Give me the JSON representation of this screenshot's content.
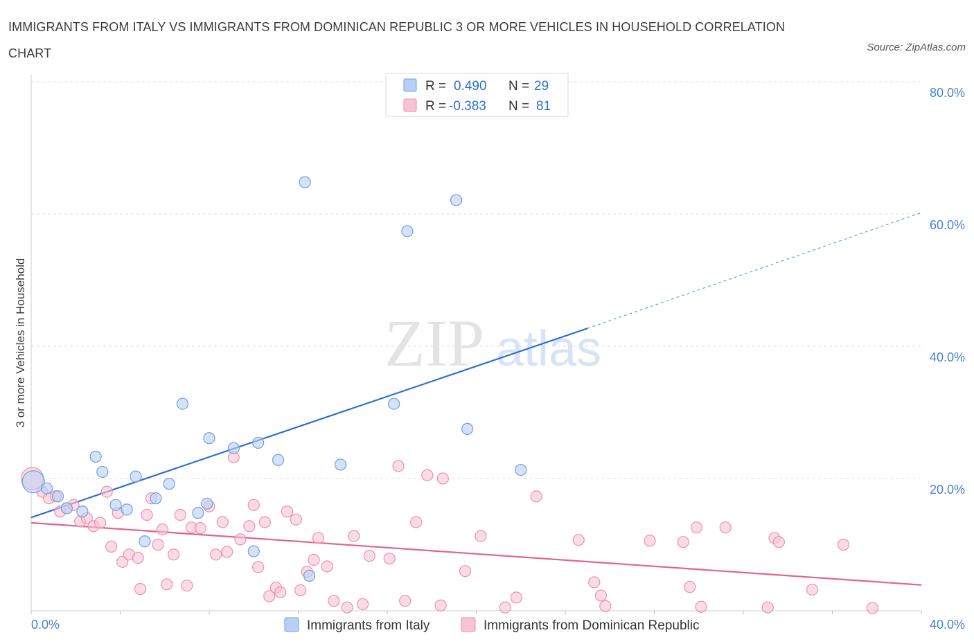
{
  "title": "IMMIGRANTS FROM ITALY VS IMMIGRANTS FROM DOMINICAN REPUBLIC 3 OR MORE VEHICLES IN HOUSEHOLD CORRELATION CHART",
  "source": "Source: ZipAtlas.com",
  "watermark": {
    "zip": "ZIP",
    "atlas": "atlas"
  },
  "colors": {
    "italy_fill": "#b8d0f5",
    "italy_stroke": "#6f9fe0",
    "italy_line": "#2e6fd0",
    "dr_fill": "#f8c4d4",
    "dr_stroke": "#ec8fae",
    "dr_line": "#e2628f",
    "label_blue": "#4a7fd0",
    "grid": "#dcdcdc"
  },
  "stats": {
    "italy": {
      "r_label": "R =",
      "r_value": "0.490",
      "n_label": "N =",
      "n_value": "29"
    },
    "dr": {
      "r_label": "R =",
      "r_value": "-0.383",
      "n_label": "N =",
      "n_value": "81"
    }
  },
  "legend": {
    "italy": "Immigrants from Italy",
    "dr": "Immigrants from Dominican Republic"
  },
  "chart_data": {
    "type": "scatter",
    "title": "IMMIGRANTS FROM ITALY VS IMMIGRANTS FROM DOMINICAN REPUBLIC 3 OR MORE VEHICLES IN HOUSEHOLD CORRELATION CHART",
    "xlabel": "",
    "ylabel": "3 or more Vehicles in Household",
    "xlim": [
      0,
      40
    ],
    "ylim": [
      0,
      80
    ],
    "x_tick_labels": [
      "0.0%",
      "40.0%"
    ],
    "y_ticks": [
      20,
      40,
      60,
      80
    ],
    "y_tick_labels": [
      "20.0%",
      "40.0%",
      "60.0%",
      "80.0%"
    ],
    "grid": true,
    "legend_position": "bottom",
    "series": [
      {
        "name": "Immigrants from Italy",
        "points": [
          [
            0.1,
            19.5
          ],
          [
            0.7,
            18.5
          ],
          [
            1.2,
            17.3
          ],
          [
            1.6,
            15.5
          ],
          [
            2.3,
            15.0
          ],
          [
            2.9,
            23.3
          ],
          [
            3.2,
            21.0
          ],
          [
            3.8,
            16.0
          ],
          [
            4.3,
            15.3
          ],
          [
            4.7,
            20.3
          ],
          [
            5.1,
            10.5
          ],
          [
            5.6,
            17.0
          ],
          [
            6.2,
            19.2
          ],
          [
            6.8,
            31.3
          ],
          [
            7.5,
            14.8
          ],
          [
            7.9,
            16.2
          ],
          [
            8.0,
            26.1
          ],
          [
            9.1,
            24.6
          ],
          [
            10.2,
            25.4
          ],
          [
            10.0,
            9.0
          ],
          [
            11.1,
            22.8
          ],
          [
            12.3,
            64.8
          ],
          [
            12.5,
            5.3
          ],
          [
            13.9,
            22.1
          ],
          [
            16.3,
            31.3
          ],
          [
            16.9,
            57.4
          ],
          [
            19.1,
            62.1
          ],
          [
            19.6,
            27.5
          ],
          [
            22.0,
            21.3
          ]
        ],
        "trend": {
          "x0": 0,
          "y0": 14.1,
          "x1": 25,
          "y1": 42.7,
          "dashed_to_x": 40,
          "dashed_to_y": 60.2
        }
      },
      {
        "name": "Immigrants from Dominican Republic",
        "points": [
          [
            0.05,
            20.0
          ],
          [
            0.5,
            18.0
          ],
          [
            0.8,
            17.0
          ],
          [
            1.1,
            17.3
          ],
          [
            1.3,
            15.0
          ],
          [
            1.6,
            15.5
          ],
          [
            1.9,
            16.0
          ],
          [
            2.2,
            13.5
          ],
          [
            2.5,
            14.0
          ],
          [
            2.8,
            12.8
          ],
          [
            3.1,
            13.3
          ],
          [
            3.4,
            18.0
          ],
          [
            3.6,
            9.7
          ],
          [
            3.9,
            14.8
          ],
          [
            4.1,
            7.4
          ],
          [
            4.4,
            8.5
          ],
          [
            4.8,
            8.0
          ],
          [
            4.9,
            3.3
          ],
          [
            5.2,
            14.5
          ],
          [
            5.4,
            17.0
          ],
          [
            5.7,
            10.0
          ],
          [
            5.9,
            12.3
          ],
          [
            6.1,
            4.0
          ],
          [
            6.4,
            8.5
          ],
          [
            6.7,
            14.5
          ],
          [
            7.0,
            3.8
          ],
          [
            7.2,
            12.6
          ],
          [
            7.6,
            12.5
          ],
          [
            8.0,
            15.8
          ],
          [
            8.3,
            8.5
          ],
          [
            8.6,
            13.4
          ],
          [
            8.8,
            8.9
          ],
          [
            9.1,
            23.2
          ],
          [
            9.4,
            10.8
          ],
          [
            9.8,
            12.8
          ],
          [
            10.0,
            16.0
          ],
          [
            10.2,
            6.6
          ],
          [
            10.5,
            13.4
          ],
          [
            10.7,
            2.2
          ],
          [
            11.0,
            3.5
          ],
          [
            11.2,
            2.8
          ],
          [
            11.5,
            15.0
          ],
          [
            11.9,
            13.8
          ],
          [
            12.1,
            3.1
          ],
          [
            12.4,
            5.9
          ],
          [
            12.7,
            7.7
          ],
          [
            12.9,
            11.0
          ],
          [
            13.3,
            6.7
          ],
          [
            13.6,
            1.5
          ],
          [
            14.2,
            0.5
          ],
          [
            14.5,
            11.3
          ],
          [
            14.9,
            1.0
          ],
          [
            15.2,
            8.3
          ],
          [
            16.1,
            7.9
          ],
          [
            16.5,
            21.9
          ],
          [
            16.8,
            1.5
          ],
          [
            17.3,
            13.4
          ],
          [
            17.8,
            20.5
          ],
          [
            18.4,
            0.8
          ],
          [
            18.5,
            20.0
          ],
          [
            19.5,
            6.0
          ],
          [
            20.2,
            11.3
          ],
          [
            21.3,
            0.5
          ],
          [
            21.8,
            2.0
          ],
          [
            22.7,
            17.3
          ],
          [
            24.6,
            10.7
          ],
          [
            25.3,
            4.3
          ],
          [
            25.6,
            2.3
          ],
          [
            25.8,
            0.7
          ],
          [
            27.8,
            10.6
          ],
          [
            29.3,
            10.4
          ],
          [
            29.6,
            3.6
          ],
          [
            29.9,
            12.6
          ],
          [
            30.1,
            0.6
          ],
          [
            31.2,
            12.6
          ],
          [
            33.1,
            0.5
          ],
          [
            33.4,
            11.0
          ],
          [
            33.6,
            10.4
          ],
          [
            35.1,
            3.2
          ],
          [
            36.5,
            10.0
          ],
          [
            37.8,
            0.4
          ]
        ],
        "trend": {
          "x0": 0,
          "y0": 13.3,
          "x1": 40,
          "y1": 3.9
        }
      }
    ]
  }
}
